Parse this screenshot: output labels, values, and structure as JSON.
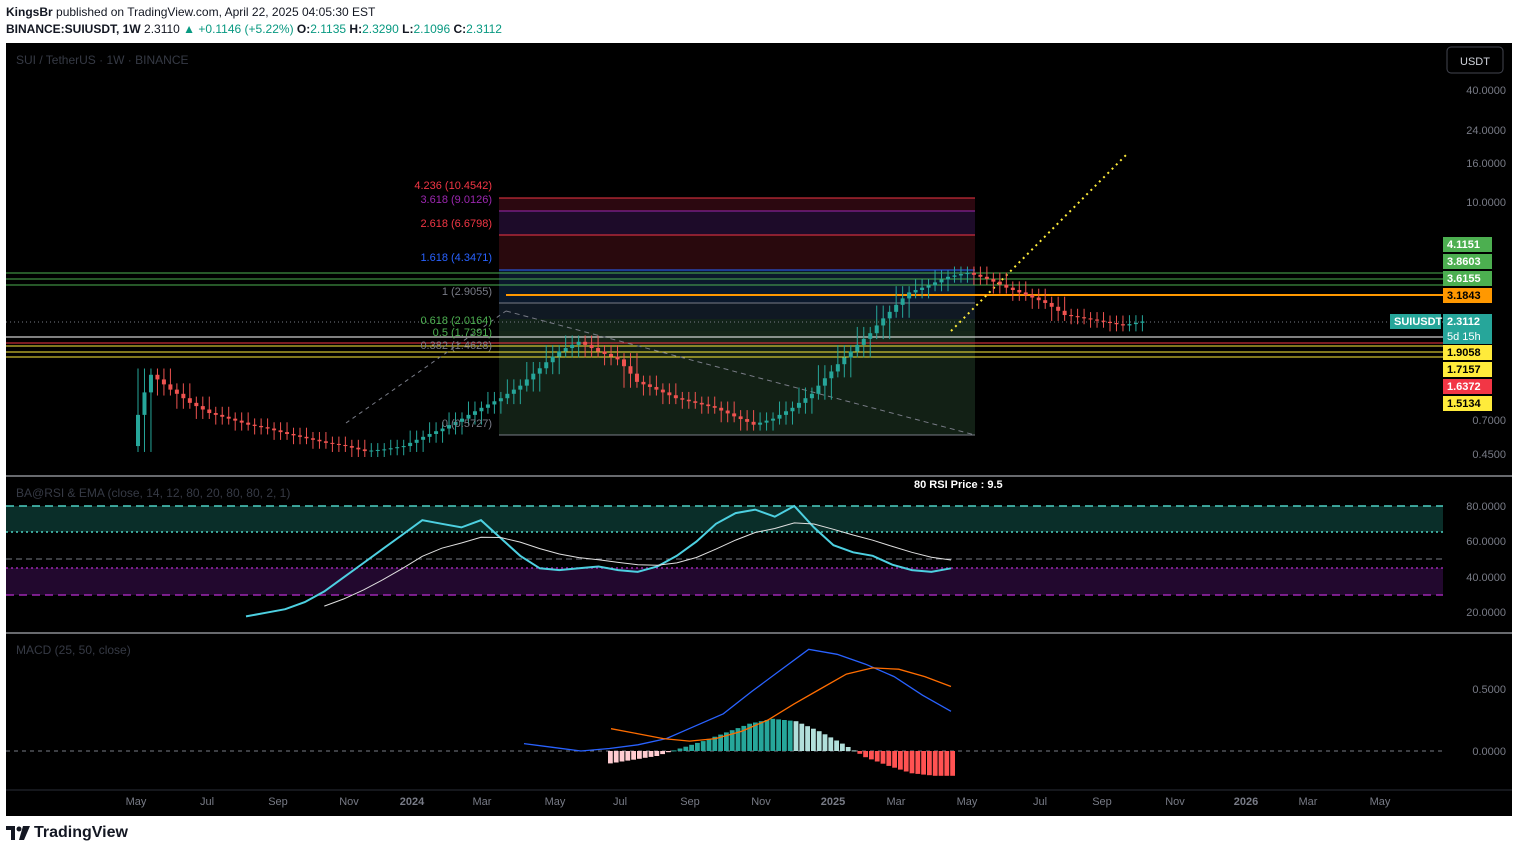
{
  "header": {
    "author": "KingsBr",
    "published": "published on TradingView.com, April 22, 2025 04:05:30 EST",
    "symbol": "BINANCE:SUIUSDT, 1W",
    "last": "2.3110",
    "change": "▲ +0.1146 (+5.22%)",
    "o_label": "O:",
    "o": "2.1135",
    "h_label": "H:",
    "h": "2.3290",
    "l_label": "L:",
    "l": "2.1096",
    "c_label": "C:",
    "c": "2.3112"
  },
  "chart": {
    "watermark": "SUI / TetherUS · 1W · BINANCE",
    "currency_button": "USDT",
    "price_axis": [
      "40.0000",
      "24.0000",
      "16.0000",
      "10.0000",
      "0.7000",
      "0.4500"
    ],
    "price_tags": [
      {
        "text": "4.1151",
        "bg": "#4caf50",
        "fg": "#ffffff"
      },
      {
        "text": "3.8603",
        "bg": "#4caf50",
        "fg": "#ffffff"
      },
      {
        "text": "3.6155",
        "bg": "#4caf50",
        "fg": "#ffffff"
      },
      {
        "text": "3.1843",
        "bg": "#ff9800",
        "fg": "#000000"
      },
      {
        "text": "2.3112",
        "bg": "#26a69a",
        "fg": "#ffffff"
      },
      {
        "text": "5d 15h",
        "bg": "#26a69a",
        "fg": "#ffffff"
      },
      {
        "text": "1.9058",
        "bg": "#ffeb3b",
        "fg": "#000000"
      },
      {
        "text": "1.7157",
        "bg": "#ffeb3b",
        "fg": "#000000"
      },
      {
        "text": "1.6372",
        "bg": "#f23645",
        "fg": "#ffffff"
      },
      {
        "text": "1.5134",
        "bg": "#ffeb3b",
        "fg": "#000000"
      }
    ],
    "symbol_tag": "SUIUSDT",
    "fib_labels": [
      {
        "text": "4.236 (10.4542)",
        "color": "#f23645"
      },
      {
        "text": "3.618 (9.0126)",
        "color": "#9c27b0"
      },
      {
        "text": "2.618 (6.6798)",
        "color": "#f23645"
      },
      {
        "text": "1.618 (4.3471)",
        "color": "#2962ff"
      },
      {
        "text": "1 (2.9055)",
        "color": "#787b86"
      },
      {
        "text": "0.618 (2.0164)",
        "color": "#4caf50"
      },
      {
        "text": "0.5 (1.7391)",
        "color": "#4caf50"
      },
      {
        "text": "0.382 (1.4628)",
        "color": "#787b86"
      },
      {
        "text": "0 (0.5727)",
        "color": "#787b86"
      }
    ],
    "time_axis": [
      "May",
      "Jul",
      "Sep",
      "Nov",
      "2024",
      "Mar",
      "May",
      "Jul",
      "Sep",
      "Nov",
      "2025",
      "Mar",
      "May",
      "Jul",
      "Sep",
      "Nov",
      "2026",
      "Mar",
      "May"
    ],
    "rsi_title": "BA@RSI & EMA (close, 14, 12, 80, 20, 80, 80, 2, 1)",
    "rsi_price_note": "80 RSI Price : 9.5",
    "rsi_axis": [
      "80.0000",
      "60.0000",
      "40.0000",
      "20.0000"
    ],
    "macd_title": "MACD (25, 50, close)",
    "macd_axis": [
      "0.5000",
      "0.0000"
    ]
  },
  "chart_data": {
    "type": "candlestick",
    "title": "SUI / TetherUS · 1W · BINANCE",
    "series": [
      {
        "name": "SUIUSDT price (approx weekly close)",
        "values": [
          1.2,
          1.0,
          0.85,
          0.75,
          0.7,
          0.65,
          0.62,
          0.58,
          0.55,
          0.52,
          0.5,
          0.47,
          0.48,
          0.5,
          0.56,
          0.62,
          0.7,
          0.8,
          0.9,
          1.05,
          1.3,
          1.6,
          1.8,
          1.6,
          1.45,
          1.1,
          1.0,
          0.9,
          0.85,
          0.8,
          0.72,
          0.65,
          0.7,
          0.8,
          0.95,
          1.25,
          1.6,
          2.0,
          2.6,
          3.3,
          3.6,
          4.0,
          4.2,
          3.9,
          3.5,
          3.2,
          2.9,
          2.5,
          2.4,
          2.3,
          2.2,
          2.31
        ]
      },
      {
        "name": "RSI",
        "values": [
          18,
          20,
          22,
          26,
          32,
          40,
          48,
          56,
          64,
          72,
          70,
          68,
          72,
          62,
          52,
          45,
          44,
          45,
          46,
          44,
          43,
          46,
          52,
          60,
          70,
          76,
          78,
          74,
          80,
          68,
          58,
          54,
          52,
          47,
          44,
          43,
          45
        ]
      },
      {
        "name": "MACD",
        "values": [
          0.06,
          0.03,
          0.0,
          0.02,
          0.05,
          0.1,
          0.2,
          0.3,
          0.48,
          0.65,
          0.82,
          0.78,
          0.7,
          0.6,
          0.45,
          0.32
        ]
      },
      {
        "name": "Signal",
        "values": [
          0.18,
          0.14,
          0.1,
          0.08,
          0.1,
          0.16,
          0.25,
          0.38,
          0.5,
          0.62,
          0.67,
          0.66,
          0.6,
          0.52
        ]
      },
      {
        "name": "Histogram",
        "values": [
          -0.1,
          -0.07,
          -0.04,
          0.02,
          0.08,
          0.15,
          0.22,
          0.26,
          0.24,
          0.16,
          0.06,
          -0.05,
          -0.12,
          -0.18,
          -0.2
        ]
      }
    ],
    "fib_levels": [
      {
        "ratio": 4.236,
        "price": 10.4542
      },
      {
        "ratio": 3.618,
        "price": 9.0126
      },
      {
        "ratio": 2.618,
        "price": 6.6798
      },
      {
        "ratio": 1.618,
        "price": 4.3471
      },
      {
        "ratio": 1,
        "price": 2.9055
      },
      {
        "ratio": 0.618,
        "price": 2.0164
      },
      {
        "ratio": 0.5,
        "price": 1.7391
      },
      {
        "ratio": 0.382,
        "price": 1.4628
      },
      {
        "ratio": 0,
        "price": 0.5727
      }
    ],
    "horizontal_levels": [
      4.1151,
      3.8603,
      3.6155,
      3.1843,
      1.9058,
      1.7157,
      1.6372,
      1.5134
    ],
    "last_price": 2.3112,
    "rsi_levels": [
      80,
      65,
      50,
      45,
      30
    ],
    "y_scale": "log"
  }
}
